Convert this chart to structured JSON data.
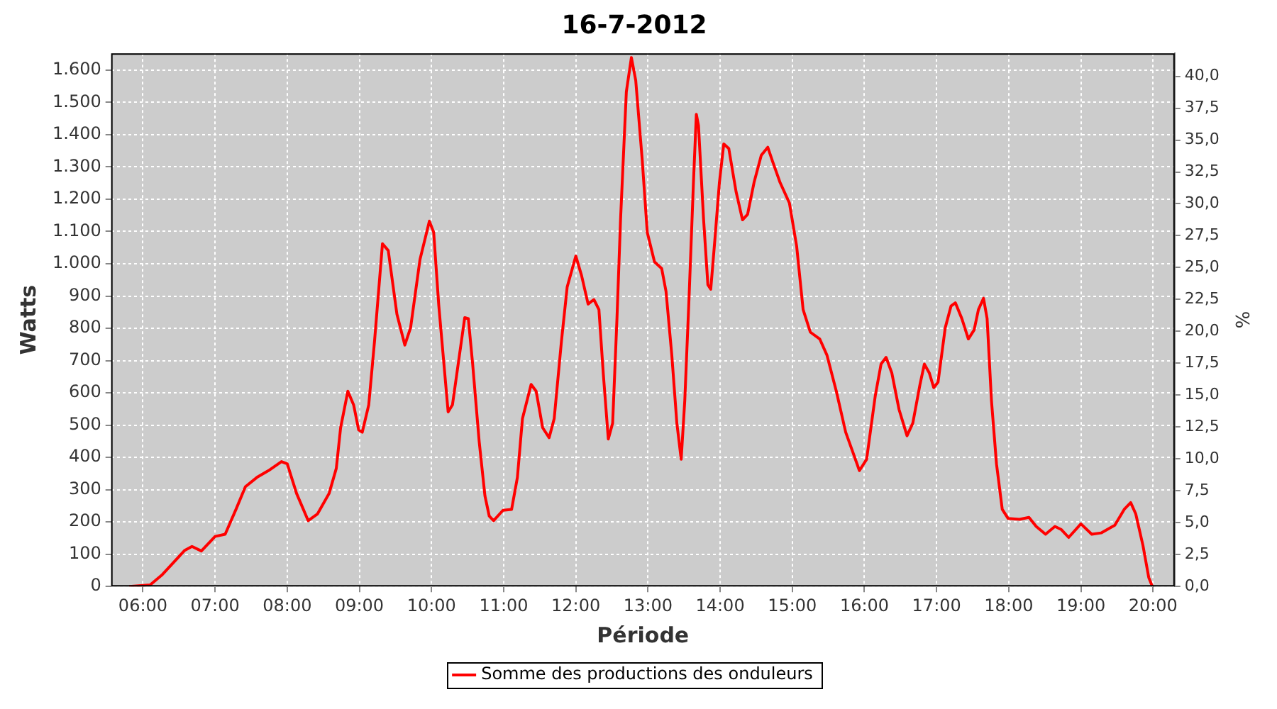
{
  "chart_data": {
    "type": "line",
    "title": "16-7-2012",
    "xlabel": "Période",
    "ylabel": "Watts",
    "y2label": "%",
    "xlim": [
      5.56,
      20.3
    ],
    "xticks": [
      {
        "value": 6,
        "label": "06:00"
      },
      {
        "value": 7,
        "label": "07:00"
      },
      {
        "value": 8,
        "label": "08:00"
      },
      {
        "value": 9,
        "label": "09:00"
      },
      {
        "value": 10,
        "label": "10:00"
      },
      {
        "value": 11,
        "label": "11:00"
      },
      {
        "value": 12,
        "label": "12:00"
      },
      {
        "value": 13,
        "label": "13:00"
      },
      {
        "value": 14,
        "label": "14:00"
      },
      {
        "value": 15,
        "label": "15:00"
      },
      {
        "value": 16,
        "label": "16:00"
      },
      {
        "value": 17,
        "label": "17:00"
      },
      {
        "value": 18,
        "label": "18:00"
      },
      {
        "value": 19,
        "label": "19:00"
      },
      {
        "value": 20,
        "label": "20:00"
      }
    ],
    "ylim": [
      0,
      1652
    ],
    "yticks": [
      0,
      100,
      200,
      300,
      400,
      500,
      600,
      700,
      800,
      900,
      {
        "value": 1000,
        "label": "1.000"
      },
      {
        "value": 1100,
        "label": "1.100"
      },
      {
        "value": 1200,
        "label": "1.200"
      },
      {
        "value": 1300,
        "label": "1.300"
      },
      {
        "value": 1400,
        "label": "1.400"
      },
      {
        "value": 1500,
        "label": "1.500"
      },
      {
        "value": 1600,
        "label": "1.600"
      }
    ],
    "y2lim": [
      0,
      41.8
    ],
    "y2ticks": [
      {
        "value": 0,
        "label": "0,0"
      },
      {
        "value": 2.5,
        "label": "2,5"
      },
      {
        "value": 5,
        "label": "5,0"
      },
      {
        "value": 7.5,
        "label": "7,5"
      },
      {
        "value": 10,
        "label": "10,0"
      },
      {
        "value": 12.5,
        "label": "12,5"
      },
      {
        "value": 15,
        "label": "15,0"
      },
      {
        "value": 17.5,
        "label": "17,5"
      },
      {
        "value": 20,
        "label": "20,0"
      },
      {
        "value": 22.5,
        "label": "22,5"
      },
      {
        "value": 25,
        "label": "25,0"
      },
      {
        "value": 27.5,
        "label": "27,5"
      },
      {
        "value": 30,
        "label": "30,0"
      },
      {
        "value": 32.5,
        "label": "32,5"
      },
      {
        "value": 35,
        "label": "35,0"
      },
      {
        "value": 37.5,
        "label": "37,5"
      },
      {
        "value": 40,
        "label": "40,0"
      }
    ],
    "grid": true,
    "legend": "bottom",
    "marker": "none",
    "line_style": "solid",
    "series": [
      {
        "name": "Somme des productions des onduleurs",
        "color": "#ff0000",
        "x": [
          5.81,
          6.1,
          6.26,
          6.58,
          6.68,
          6.81,
          7.0,
          7.14,
          7.29,
          7.42,
          7.58,
          7.74,
          7.92,
          8.0,
          8.13,
          8.29,
          8.42,
          8.58,
          8.68,
          8.74,
          8.84,
          8.92,
          8.99,
          9.04,
          9.13,
          9.21,
          9.32,
          9.4,
          9.52,
          9.63,
          9.71,
          9.84,
          9.97,
          10.03,
          10.1,
          10.23,
          10.29,
          10.46,
          10.51,
          10.57,
          10.66,
          10.74,
          10.8,
          10.86,
          10.99,
          11.11,
          11.19,
          11.26,
          11.38,
          11.45,
          11.54,
          11.63,
          11.7,
          11.8,
          11.88,
          12.0,
          12.08,
          12.17,
          12.25,
          12.32,
          12.38,
          12.45,
          12.51,
          12.57,
          12.62,
          12.7,
          12.77,
          12.83,
          12.92,
          12.99,
          13.09,
          13.19,
          13.25,
          13.33,
          13.4,
          13.46,
          13.51,
          13.57,
          13.63,
          13.67,
          13.7,
          13.77,
          13.83,
          13.87,
          13.93,
          13.99,
          14.05,
          14.12,
          14.22,
          14.31,
          14.38,
          14.47,
          14.57,
          14.66,
          14.73,
          14.83,
          14.96,
          15.06,
          15.15,
          15.25,
          15.38,
          15.48,
          15.61,
          15.74,
          15.83,
          15.93,
          16.03,
          16.15,
          16.23,
          16.3,
          16.38,
          16.48,
          16.59,
          16.67,
          16.77,
          16.83,
          16.9,
          16.96,
          17.02,
          17.12,
          17.2,
          17.26,
          17.35,
          17.44,
          17.52,
          17.58,
          17.65,
          17.7,
          17.76,
          17.83,
          17.91,
          17.99,
          18.15,
          18.28,
          18.38,
          18.51,
          18.64,
          18.73,
          18.83,
          19.0,
          19.15,
          19.28,
          19.47,
          19.6,
          19.69,
          19.76,
          19.86,
          19.94,
          19.99
        ],
        "values": [
          0,
          5,
          35,
          112,
          124,
          110,
          155,
          162,
          239,
          309,
          338,
          359,
          387,
          380,
          288,
          204,
          225,
          288,
          366,
          492,
          605,
          563,
          485,
          478,
          563,
          760,
          1062,
          1041,
          844,
          748,
          802,
          1013,
          1132,
          1097,
          872,
          541,
          563,
          833,
          830,
          689,
          450,
          281,
          218,
          204,
          236,
          239,
          338,
          520,
          626,
          605,
          492,
          461,
          520,
          759,
          928,
          1024,
          963,
          875,
          889,
          858,
          661,
          457,
          506,
          830,
          1139,
          1533,
          1639,
          1568,
          1322,
          1097,
          1006,
          985,
          914,
          717,
          506,
          394,
          577,
          900,
          1252,
          1463,
          1428,
          1139,
          935,
          921,
          1083,
          1252,
          1371,
          1357,
          1224,
          1136,
          1153,
          1252,
          1336,
          1361,
          1315,
          1252,
          1188,
          1055,
          858,
          788,
          767,
          717,
          605,
          478,
          422,
          359,
          394,
          591,
          689,
          710,
          661,
          548,
          467,
          506,
          626,
          689,
          661,
          616,
          633,
          802,
          869,
          879,
          830,
          767,
          795,
          858,
          893,
          830,
          577,
          380,
          239,
          211,
          208,
          214,
          186,
          162,
          186,
          176,
          152,
          194,
          162,
          166,
          190,
          239,
          260,
          225,
          127,
          28,
          0
        ]
      }
    ]
  }
}
